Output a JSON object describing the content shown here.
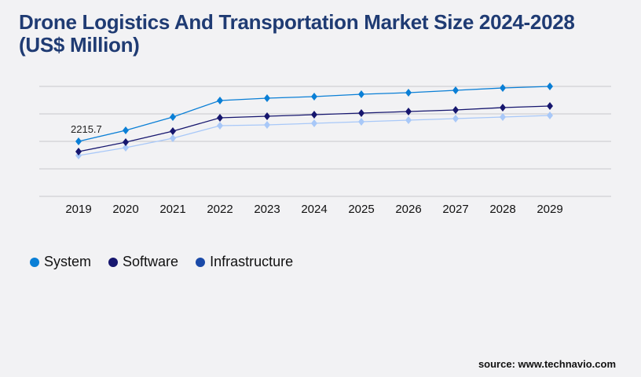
{
  "title": "Drone Logistics And Transportation Market Size 2024-2028 (US$ Million)",
  "source": "source: www.technavio.com",
  "chart_data": {
    "type": "line",
    "title": "Drone Logistics And Transportation Market Size 2024-2028 (US$ Million)",
    "x": [
      "2019",
      "2020",
      "2021",
      "2022",
      "2023",
      "2024",
      "2025",
      "2026",
      "2027",
      "2028",
      "2029"
    ],
    "ylim": [
      0,
      4431.4
    ],
    "grid": true,
    "legend": "bottom-left",
    "series": [
      {
        "name": "System",
        "color": "#0a7fd6",
        "legend_color": "#0a7fd6",
        "values": [
          2215.7,
          2659,
          3197,
          3862,
          3957,
          4020,
          4115,
          4178,
          4273,
          4368,
          4431
        ]
      },
      {
        "name": "Software",
        "color": "#16166e",
        "legend_color": "#16166e",
        "values": [
          1804,
          2184,
          2627,
          3165,
          3229,
          3292,
          3355,
          3419,
          3482,
          3577,
          3640
        ]
      },
      {
        "name": "Infrastructure",
        "color": "#a8c8f8",
        "legend_color": "#1a4aa8",
        "values": [
          1646,
          1962,
          2342,
          2849,
          2880,
          2944,
          3007,
          3070,
          3134,
          3197,
          3260
        ]
      }
    ],
    "annotations": [
      {
        "series": "System",
        "x": "2019",
        "text": "2215.7"
      }
    ]
  }
}
